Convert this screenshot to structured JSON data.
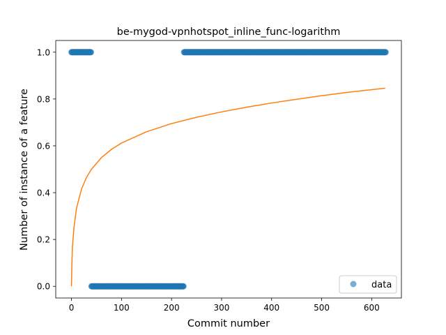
{
  "chart_data": {
    "type": "scatter",
    "title": "be-mygod-vpnhotspot_inline_func-logarithm",
    "xlabel": "Commit number",
    "ylabel": "Number of instance of a feature",
    "xlim": [
      -31.4,
      659.4
    ],
    "ylim": [
      -0.05,
      1.05
    ],
    "xticks": [
      0,
      100,
      200,
      300,
      400,
      500,
      600
    ],
    "yticks": [
      0.0,
      0.2,
      0.4,
      0.6,
      0.8,
      1.0
    ],
    "xtick_labels": [
      "0",
      "100",
      "200",
      "300",
      "400",
      "500",
      "600"
    ],
    "ytick_labels": [
      "0.0",
      "0.2",
      "0.4",
      "0.6",
      "0.8",
      "1.0"
    ],
    "grid": false,
    "legend": {
      "position": "lower right",
      "entries": [
        "data"
      ]
    },
    "series": [
      {
        "name": "data",
        "kind": "scatter",
        "color": "#1f77b4",
        "alpha": 0.6,
        "segments": [
          {
            "x_start": 0,
            "x_end": 39,
            "y": 1.0
          },
          {
            "x_start": 40,
            "x_end": 224,
            "y": 0.0
          },
          {
            "x_start": 225,
            "x_end": 628,
            "y": 1.0
          }
        ]
      },
      {
        "kind": "line",
        "color": "#ff7f0e",
        "function": "logarithmic fit",
        "points": [
          [
            0,
            0.0
          ],
          [
            1,
            0.108
          ],
          [
            2,
            0.171
          ],
          [
            5,
            0.25
          ],
          [
            10,
            0.333
          ],
          [
            20,
            0.415
          ],
          [
            30,
            0.465
          ],
          [
            40,
            0.5
          ],
          [
            60,
            0.55
          ],
          [
            80,
            0.585
          ],
          [
            100,
            0.612
          ],
          [
            150,
            0.66
          ],
          [
            200,
            0.695
          ],
          [
            250,
            0.722
          ],
          [
            300,
            0.745
          ],
          [
            350,
            0.765
          ],
          [
            400,
            0.783
          ],
          [
            450,
            0.799
          ],
          [
            500,
            0.814
          ],
          [
            550,
            0.828
          ],
          [
            600,
            0.84
          ],
          [
            627,
            0.846
          ]
        ]
      }
    ]
  }
}
